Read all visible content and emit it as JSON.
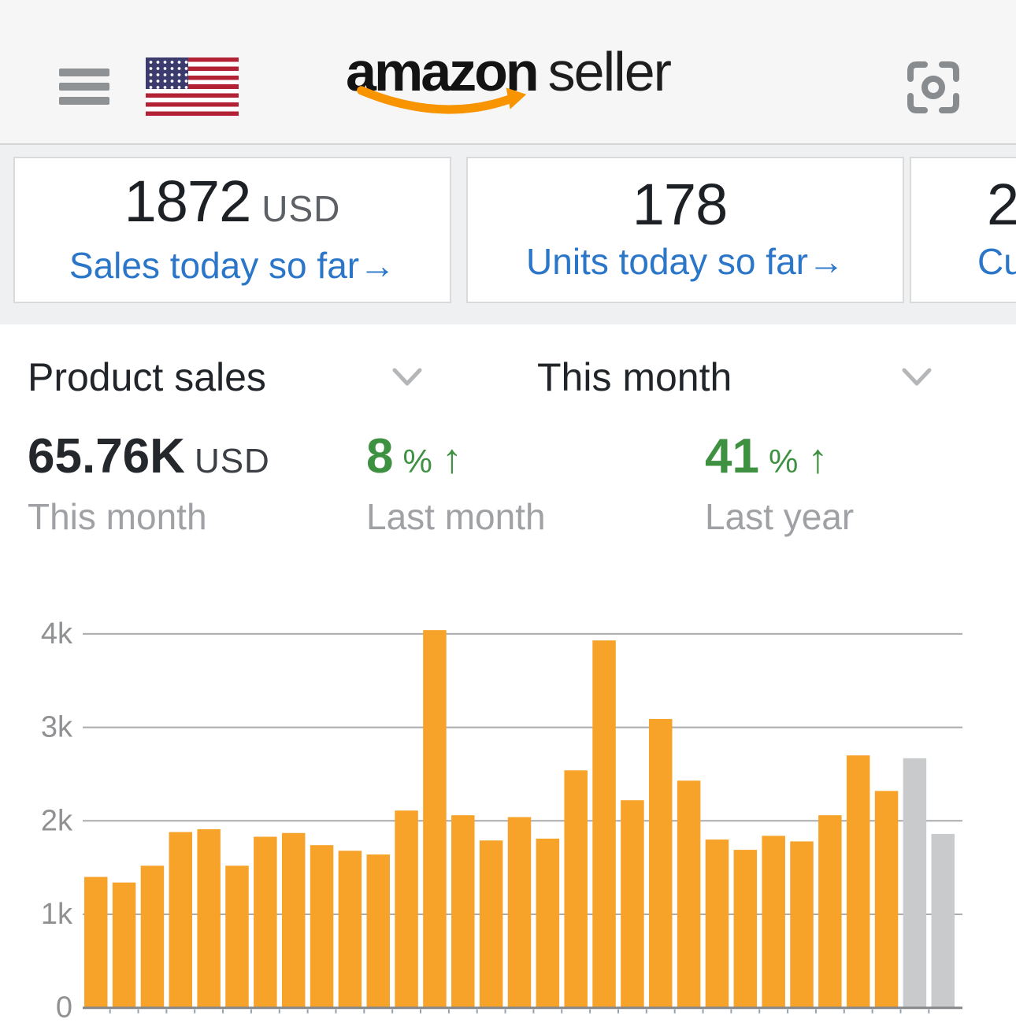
{
  "header": {
    "brand": "amazon",
    "brand_suffix": "seller"
  },
  "summary_cards": [
    {
      "value": "1872",
      "unit": "USD",
      "link_label": "Sales today so far",
      "link_arrow": "→"
    },
    {
      "value": "178",
      "unit": "",
      "link_label": "Units today so far",
      "link_arrow": "→"
    },
    {
      "value": "2",
      "unit": "",
      "link_label": "Cu",
      "link_arrow": ""
    }
  ],
  "filters": {
    "metric_label": "Product sales",
    "period_label": "This month"
  },
  "stats": {
    "primary": {
      "value": "65.76K",
      "unit": "USD",
      "caption": "This month"
    },
    "vs_last_month": {
      "value": "8",
      "unit": "%",
      "direction": "↑",
      "caption": "Last month"
    },
    "vs_last_year": {
      "value": "41",
      "unit": "%",
      "direction": "↑",
      "caption": "Last year"
    }
  },
  "chart_data": {
    "type": "bar",
    "title": "",
    "values": [
      1400,
      1340,
      1520,
      1880,
      1910,
      1520,
      1830,
      1870,
      1740,
      1680,
      1640,
      2110,
      4040,
      2060,
      1790,
      2040,
      1810,
      2540,
      3930,
      2220,
      3090,
      2430,
      1800,
      1690,
      1840,
      1780,
      2060,
      2700,
      2320,
      2670,
      1860
    ],
    "num_bars": 31,
    "gray_bars_at_end": 2,
    "ylim": [
      0,
      4300
    ],
    "yticks": [
      0,
      1000,
      2000,
      3000,
      4000
    ],
    "ytick_labels": [
      "0",
      "1k",
      "2k",
      "3k",
      "4k"
    ],
    "x_axis_labels_visible": false,
    "grid": true,
    "legend": false,
    "bar_color": "#F7A329",
    "inactive_bar_color": "#C8CACB"
  },
  "colors": {
    "accent_orange": "#F7A329",
    "link_blue": "#2B76C9",
    "positive_green": "#3F9142",
    "inactive_gray": "#C8CACB",
    "flag_red": "#B22234",
    "flag_blue": "#3C3B6E"
  }
}
